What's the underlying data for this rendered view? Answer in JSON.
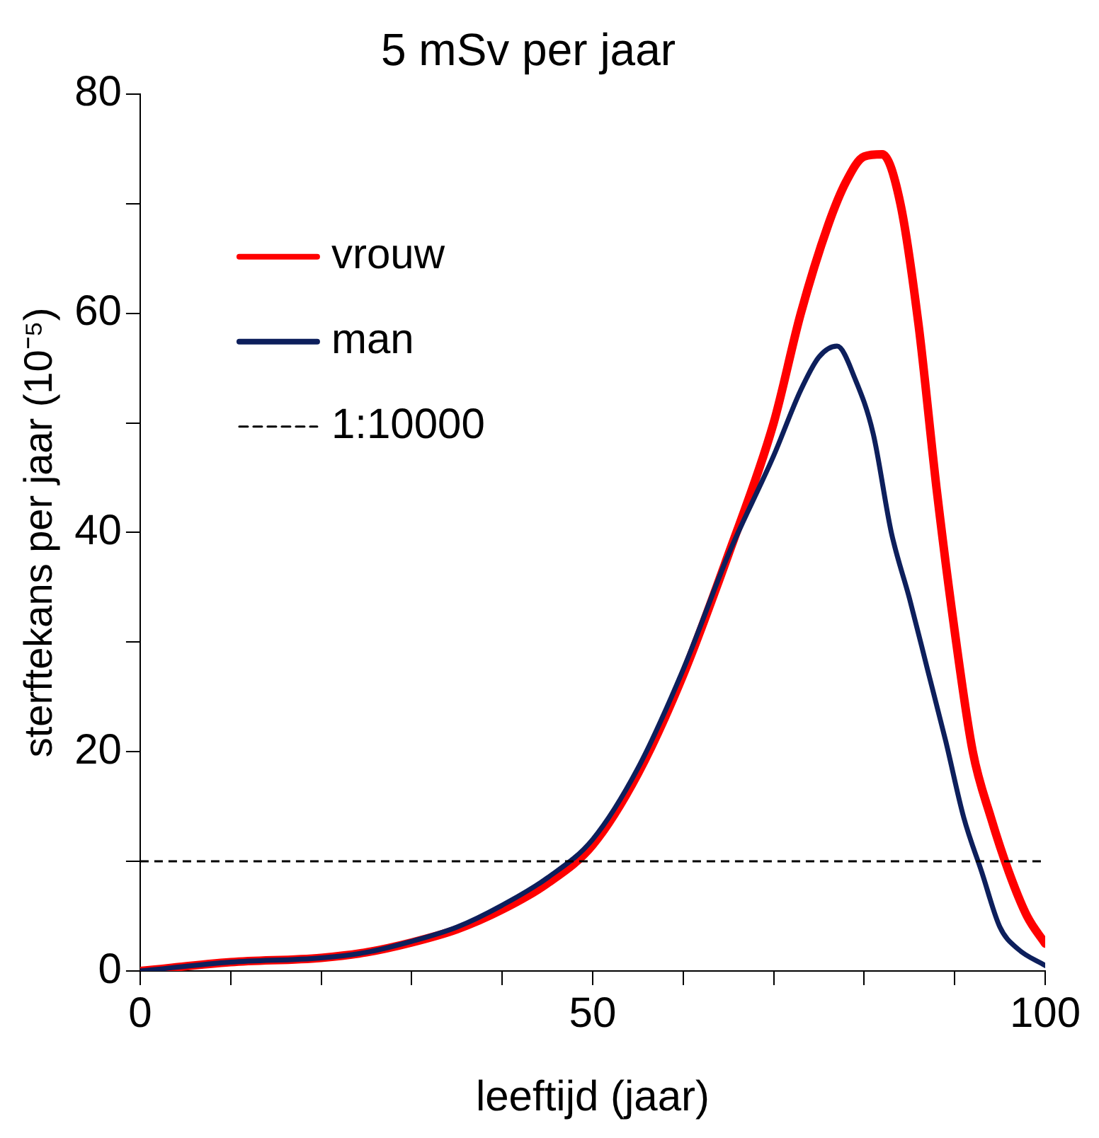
{
  "chart_data": {
    "type": "line",
    "title": "5 mSv per jaar",
    "xlabel": "leeftijd (jaar)",
    "ylabel": "sterftekans per jaar (10⁻⁵)",
    "series": [
      {
        "name": "vrouw",
        "color": "#ff0000",
        "x": [
          0,
          10,
          20,
          25,
          30,
          35,
          40,
          45,
          50,
          55,
          60,
          65,
          70,
          73,
          76,
          78,
          80,
          82,
          84,
          86,
          88,
          90,
          92,
          94,
          96,
          98,
          100
        ],
        "values": [
          0,
          0.8,
          1.2,
          1.7,
          2.6,
          3.8,
          5.6,
          8,
          11.5,
          18,
          27,
          38,
          50,
          60,
          68,
          72,
          74.3,
          74.5,
          70,
          59,
          44,
          31,
          20,
          14,
          9,
          5,
          2.5
        ]
      },
      {
        "name": "man",
        "color": "#0d1f5c",
        "x": [
          0,
          10,
          20,
          25,
          30,
          35,
          40,
          45,
          50,
          55,
          60,
          65,
          70,
          73,
          75,
          77,
          79,
          81,
          83,
          85,
          87,
          89,
          91,
          93,
          95,
          97,
          100
        ],
        "values": [
          0,
          0.8,
          1.2,
          1.7,
          2.7,
          4,
          6,
          8.5,
          12,
          18.5,
          27.5,
          38,
          47,
          53,
          56,
          57,
          54,
          49,
          40,
          34,
          27.5,
          21,
          14,
          9,
          4,
          2,
          0.5
        ]
      }
    ],
    "xlim": [
      0,
      100
    ],
    "xticks": [
      0,
      {
        "value": 10,
        "label": null
      },
      {
        "value": 20,
        "label": null
      },
      {
        "value": 30,
        "label": null
      },
      {
        "value": 40,
        "label": null
      },
      50,
      {
        "value": 60,
        "label": null
      },
      {
        "value": 70,
        "label": null
      },
      {
        "value": 80,
        "label": null
      },
      {
        "value": 90,
        "label": null
      },
      100
    ],
    "ylim": [
      0,
      80
    ],
    "yticks": [
      0,
      {
        "value": 10,
        "label": null
      },
      20,
      {
        "value": 30,
        "label": null
      },
      40,
      {
        "value": 50,
        "label": null
      },
      60,
      {
        "value": 70,
        "label": null
      },
      80
    ],
    "ref_lines": [
      {
        "axis": "y",
        "value": 10,
        "label": "1:10000",
        "color": "#000000",
        "line_style": "dashed"
      }
    ],
    "legend": "top left",
    "grid": false,
    "marker": "none",
    "line_style": "solid"
  }
}
